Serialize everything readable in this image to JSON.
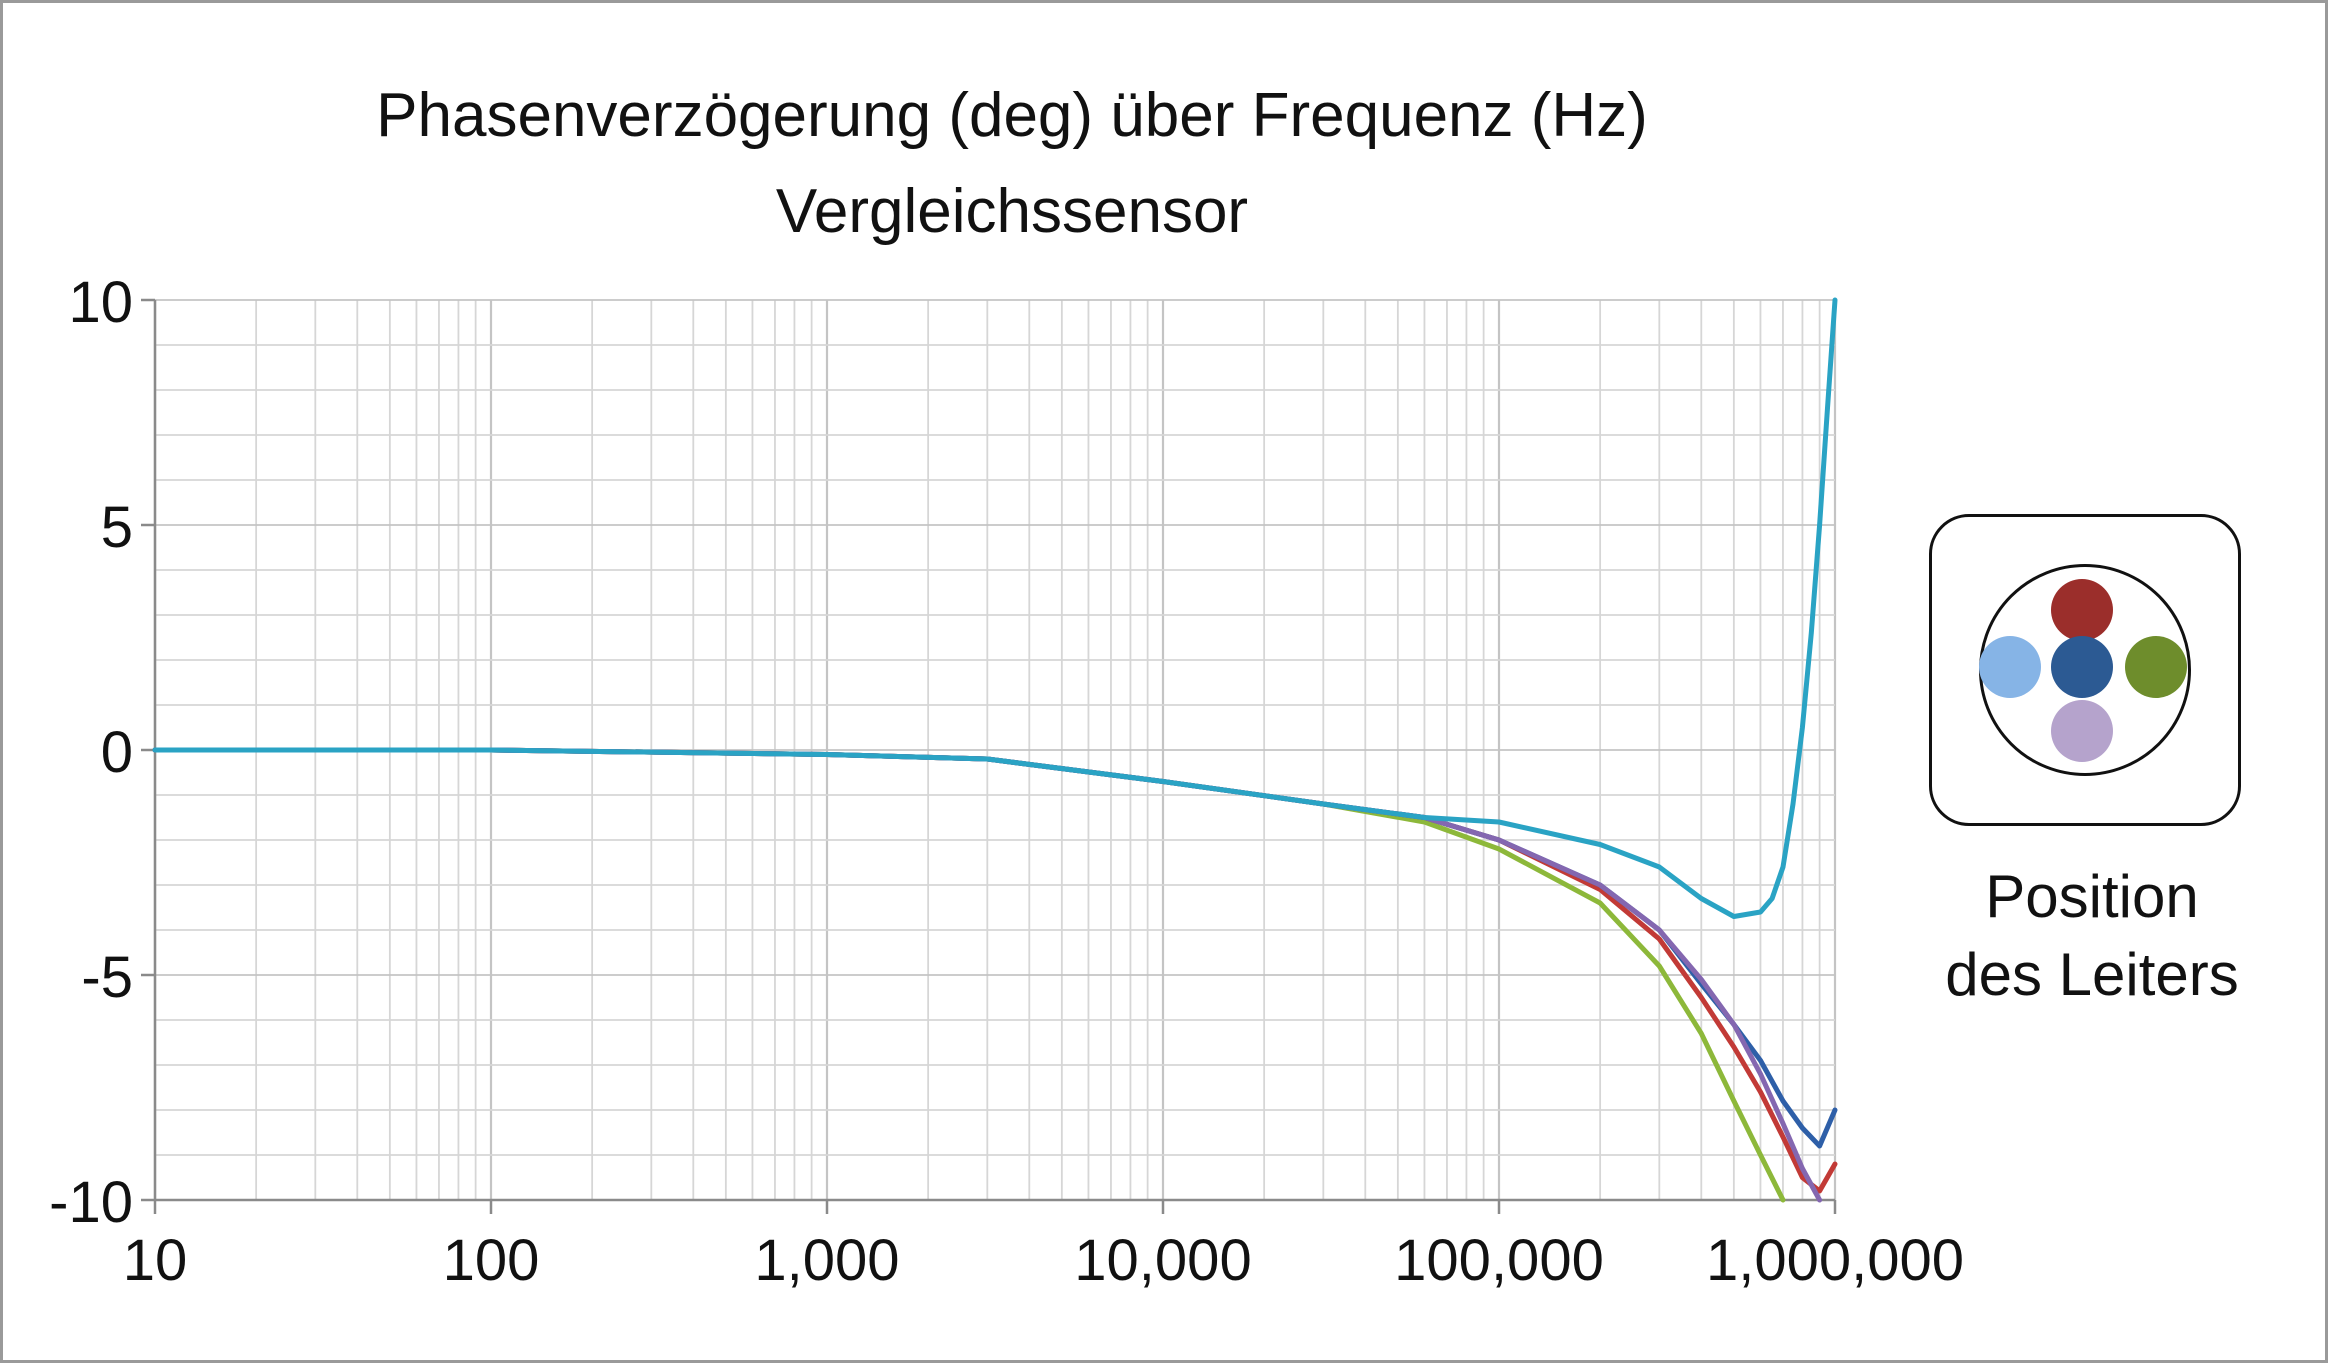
{
  "title": "Phasenverzögerung (deg) über Frequenz (Hz)",
  "subtitle": "Vergleichssensor",
  "legend": {
    "label_line1": "Position",
    "label_line2": "des Leiters",
    "positions": [
      {
        "position": "top",
        "color": "#9b2e2b"
      },
      {
        "position": "left",
        "color": "#86b4e6"
      },
      {
        "position": "center",
        "color": "#2c5a93"
      },
      {
        "position": "right",
        "color": "#6e8d2c"
      },
      {
        "position": "bottom",
        "color": "#b5a3cc"
      }
    ]
  },
  "chart_data": {
    "type": "line",
    "xscale": "log",
    "xlim": [
      10,
      1000000
    ],
    "ylim": [
      -10,
      10
    ],
    "xticks": [
      10,
      100,
      1000,
      10000,
      100000,
      1000000
    ],
    "xtick_labels": [
      "10",
      "100",
      "1,000",
      "10,000",
      "100,000",
      "1,000,000"
    ],
    "yticks": [
      10,
      5,
      0,
      -5,
      -10
    ],
    "ytick_labels": [
      "10",
      "5",
      "0",
      "-5",
      "-10"
    ],
    "grid": true,
    "series": [
      {
        "color": "#8db83a",
        "x": [
          10,
          100,
          1000,
          3000,
          10000,
          30000,
          60000,
          100000,
          200000,
          300000,
          400000,
          500000,
          600000,
          700000
        ],
        "y": [
          0,
          0,
          -0.1,
          -0.2,
          -0.7,
          -1.2,
          -1.6,
          -2.2,
          -3.4,
          -4.8,
          -6.3,
          -7.8,
          -9.0,
          -10.0
        ]
      },
      {
        "color": "#c23a36",
        "x": [
          10,
          100,
          1000,
          3000,
          10000,
          30000,
          60000,
          100000,
          200000,
          300000,
          400000,
          500000,
          600000,
          700000,
          800000,
          900000,
          1000000
        ],
        "y": [
          0,
          0,
          -0.1,
          -0.2,
          -0.7,
          -1.2,
          -1.5,
          -2.0,
          -3.1,
          -4.2,
          -5.5,
          -6.6,
          -7.6,
          -8.6,
          -9.5,
          -9.8,
          -9.2
        ]
      },
      {
        "color": "#2e5fa8",
        "x": [
          10,
          100,
          1000,
          3000,
          10000,
          30000,
          60000,
          100000,
          200000,
          300000,
          400000,
          500000,
          600000,
          700000,
          800000,
          900000,
          1000000
        ],
        "y": [
          0,
          0,
          -0.1,
          -0.2,
          -0.7,
          -1.2,
          -1.5,
          -2.0,
          -3.0,
          -4.0,
          -5.2,
          -6.1,
          -6.9,
          -7.8,
          -8.4,
          -8.8,
          -8.0
        ]
      },
      {
        "color": "#8467b0",
        "x": [
          10,
          100,
          1000,
          3000,
          10000,
          30000,
          60000,
          100000,
          200000,
          300000,
          400000,
          500000,
          600000,
          700000,
          800000,
          900000
        ],
        "y": [
          0,
          0,
          -0.1,
          -0.2,
          -0.7,
          -1.2,
          -1.5,
          -2.0,
          -3.0,
          -4.0,
          -5.1,
          -6.1,
          -7.2,
          -8.3,
          -9.3,
          -10.0
        ]
      },
      {
        "color": "#2aa3c4",
        "x": [
          10,
          100,
          1000,
          3000,
          10000,
          30000,
          60000,
          100000,
          200000,
          300000,
          400000,
          500000,
          600000,
          650000,
          700000,
          750000,
          800000,
          850000,
          900000,
          950000,
          1000000
        ],
        "y": [
          0,
          0,
          -0.1,
          -0.2,
          -0.7,
          -1.2,
          -1.5,
          -1.6,
          -2.1,
          -2.6,
          -3.3,
          -3.7,
          -3.6,
          -3.3,
          -2.6,
          -1.2,
          0.5,
          2.6,
          5.0,
          7.6,
          10.0
        ]
      }
    ]
  }
}
